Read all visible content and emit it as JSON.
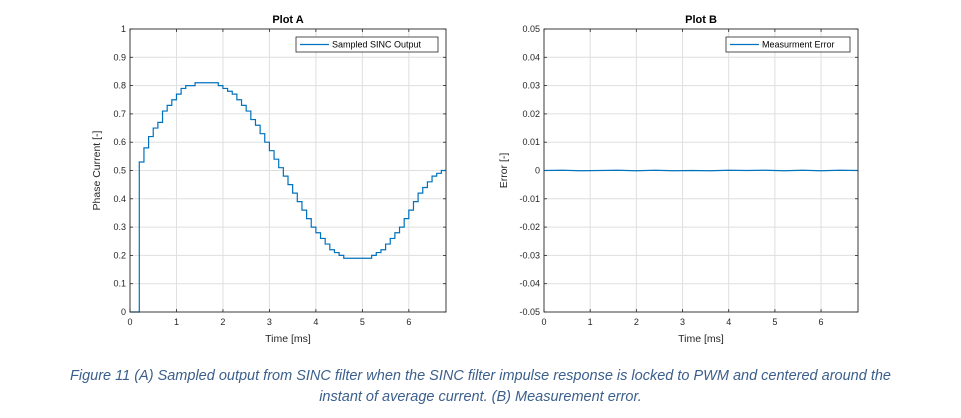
{
  "chart_data": [
    {
      "type": "line",
      "title": "Plot A",
      "xlabel": "Time [ms]",
      "ylabel": "Phase Current [-]",
      "xlim": [
        0,
        6.8
      ],
      "ylim": [
        0,
        1
      ],
      "xticks": [
        0,
        1,
        2,
        3,
        4,
        5,
        6
      ],
      "yticks": [
        0,
        0.1,
        0.2,
        0.3,
        0.4,
        0.5,
        0.6,
        0.7,
        0.8,
        0.9,
        1
      ],
      "xtick_labels": [
        "0",
        "1",
        "2",
        "3",
        "4",
        "5",
        "6"
      ],
      "ytick_labels": [
        "0",
        "0.1",
        "0.2",
        "0.3",
        "0.4",
        "0.5",
        "0.6",
        "0.7",
        "0.8",
        "0.9",
        "1"
      ],
      "grid": true,
      "legend_position": "top-right",
      "series": [
        {
          "name": "Sampled SINC Output",
          "color": "#0072bd",
          "style": "staircase",
          "x": [
            0.0,
            0.2,
            0.3,
            0.4,
            0.5,
            0.6,
            0.7,
            0.8,
            0.9,
            1.0,
            1.1,
            1.2,
            1.3,
            1.4,
            1.5,
            1.6,
            1.7,
            1.8,
            1.9,
            2.0,
            2.1,
            2.2,
            2.3,
            2.4,
            2.5,
            2.6,
            2.7,
            2.8,
            2.9,
            3.0,
            3.1,
            3.2,
            3.3,
            3.4,
            3.5,
            3.6,
            3.7,
            3.8,
            3.9,
            4.0,
            4.1,
            4.2,
            4.3,
            4.4,
            4.5,
            4.6,
            4.7,
            4.8,
            4.9,
            5.0,
            5.1,
            5.2,
            5.3,
            5.4,
            5.5,
            5.6,
            5.7,
            5.8,
            5.9,
            6.0,
            6.1,
            6.2,
            6.3,
            6.4,
            6.5,
            6.6,
            6.7,
            6.8
          ],
          "y": [
            0.0,
            0.53,
            0.58,
            0.62,
            0.65,
            0.67,
            0.71,
            0.73,
            0.75,
            0.77,
            0.79,
            0.8,
            0.8,
            0.81,
            0.81,
            0.81,
            0.81,
            0.81,
            0.8,
            0.79,
            0.78,
            0.77,
            0.75,
            0.73,
            0.71,
            0.68,
            0.66,
            0.63,
            0.6,
            0.57,
            0.54,
            0.51,
            0.48,
            0.45,
            0.42,
            0.39,
            0.36,
            0.33,
            0.3,
            0.28,
            0.26,
            0.24,
            0.22,
            0.21,
            0.2,
            0.19,
            0.19,
            0.19,
            0.19,
            0.19,
            0.19,
            0.2,
            0.21,
            0.22,
            0.24,
            0.26,
            0.28,
            0.3,
            0.33,
            0.36,
            0.39,
            0.42,
            0.44,
            0.46,
            0.48,
            0.49,
            0.5,
            0.5
          ]
        }
      ]
    },
    {
      "type": "line",
      "title": "Plot B",
      "xlabel": "Time [ms]",
      "ylabel": "Error [-]",
      "xlim": [
        0,
        6.8
      ],
      "ylim": [
        -0.05,
        0.05
      ],
      "xticks": [
        0,
        1,
        2,
        3,
        4,
        5,
        6
      ],
      "yticks": [
        -0.05,
        -0.04,
        -0.03,
        -0.02,
        -0.01,
        0,
        0.01,
        0.02,
        0.03,
        0.04,
        0.05
      ],
      "xtick_labels": [
        "0",
        "1",
        "2",
        "3",
        "4",
        "5",
        "6"
      ],
      "ytick_labels": [
        "-0.05",
        "-0.04",
        "-0.03",
        "-0.02",
        "-0.01",
        "0",
        "0.01",
        "0.02",
        "0.03",
        "0.04",
        "0.05"
      ],
      "grid": true,
      "legend_position": "top-right",
      "series": [
        {
          "name": "Measurment Error",
          "color": "#0072bd",
          "x": [
            0.0,
            0.4,
            0.8,
            1.2,
            1.6,
            2.0,
            2.4,
            2.8,
            3.2,
            3.6,
            4.0,
            4.4,
            4.8,
            5.2,
            5.6,
            6.0,
            6.4,
            6.8
          ],
          "y": [
            0.0,
            0.0001,
            -0.0001,
            0.0,
            0.0001,
            -0.0001,
            0.0001,
            -0.0001,
            0.0,
            -0.0001,
            0.0001,
            0.0,
            0.0001,
            -0.0001,
            0.0001,
            -0.0001,
            0.0001,
            0.0
          ]
        }
      ]
    }
  ],
  "caption": {
    "line1": "Figure 11 (A) Sampled output from SINC filter when the SINC filter impulse response is locked to PWM and centered around the",
    "line2": "instant of average current. (B) Measurement error."
  }
}
